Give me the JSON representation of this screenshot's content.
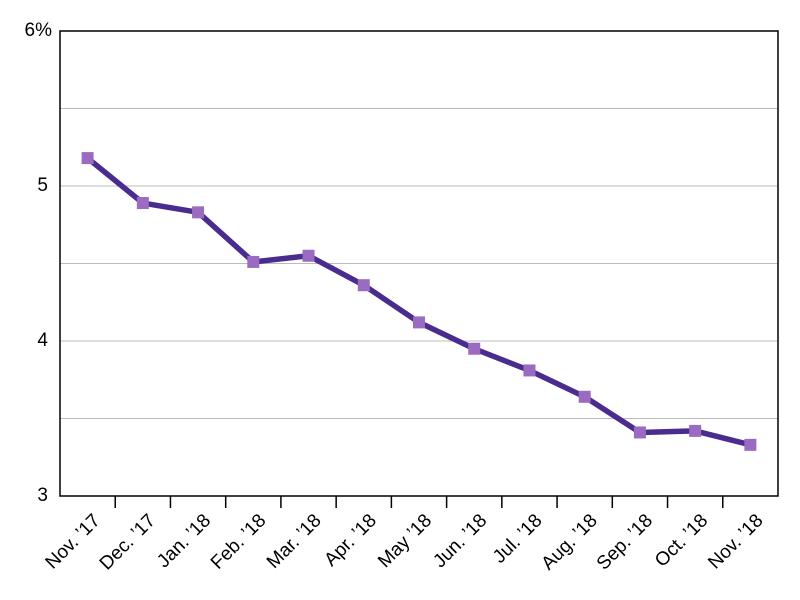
{
  "chart_data": {
    "type": "line",
    "categories": [
      "Nov. ’17",
      "Dec. ’17",
      "Jan. ’18",
      "Feb. ’18",
      "Mar. ’18",
      "Apr. ’18",
      "May ’18",
      "Jun. ’18",
      "Jul. ’18",
      "Aug. ’18",
      "Sep. ’18",
      "Oct. ’18",
      "Nov. ’18"
    ],
    "series": [
      {
        "color": "#4a2c8f",
        "marker_color": "#9a6bc0",
        "values": [
          5.18,
          4.89,
          4.83,
          4.51,
          4.55,
          4.36,
          4.12,
          3.95,
          3.81,
          3.64,
          3.41,
          3.42,
          3.33
        ]
      }
    ],
    "ylim": [
      3,
      6
    ],
    "yticks": [
      3,
      4,
      5,
      {
        "value": 6,
        "label": "6%"
      }
    ],
    "minor_grid": [
      3.5,
      4.5,
      5.5
    ],
    "grid": true
  }
}
